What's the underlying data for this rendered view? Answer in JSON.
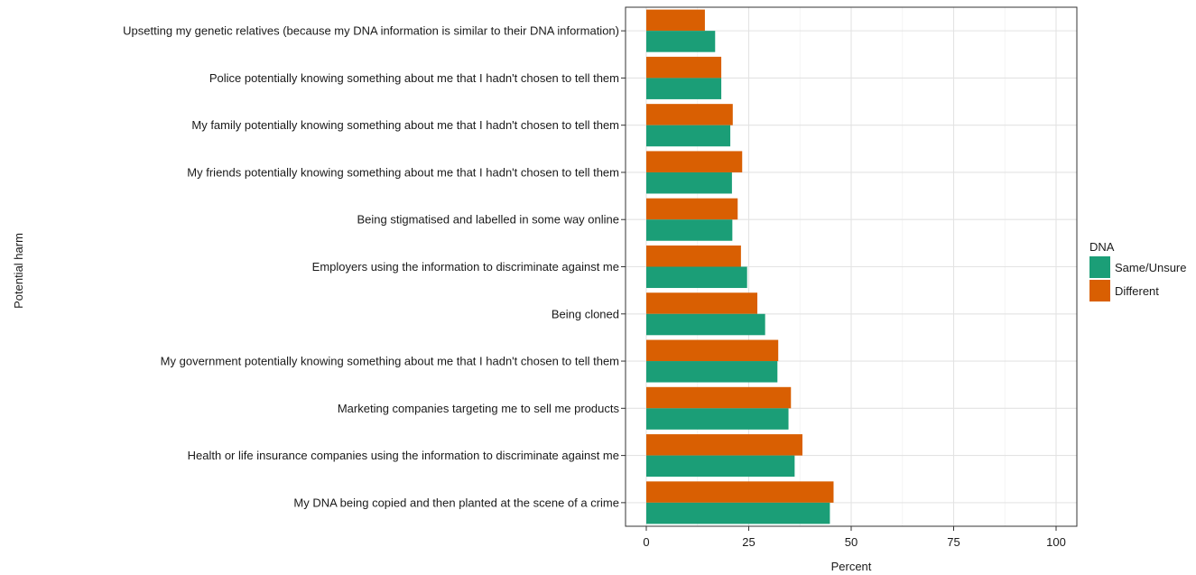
{
  "chart_data": {
    "type": "bar",
    "orientation": "horizontal",
    "categories": [
      "Upsetting my genetic relatives (because my DNA information is similar to their DNA information)",
      "Police potentially knowing something about me that I hadn't chosen to tell them",
      "My family potentially knowing something about me that I hadn't chosen to tell them",
      "My friends potentially knowing something about me that I hadn't chosen to tell them",
      "Being stigmatised and labelled in some way online",
      "Employers using the information to discriminate against me",
      "Being cloned",
      "My government potentially knowing something about me that I hadn't chosen to tell them",
      "Marketing companies targeting me to sell me products",
      "Health or life insurance companies using the information to discriminate against me",
      "My DNA being copied and then planted at the scene of a crime"
    ],
    "series": [
      {
        "name": "Same/Unsure",
        "color": "#1b9e77",
        "values": [
          16.8,
          18.3,
          20.5,
          20.9,
          21.0,
          24.6,
          29.0,
          32.0,
          34.7,
          36.2,
          44.8
        ]
      },
      {
        "name": "Different",
        "color": "#d95f02",
        "values": [
          14.3,
          18.3,
          21.1,
          23.4,
          22.3,
          23.1,
          27.1,
          32.2,
          35.3,
          38.1,
          45.7
        ]
      }
    ],
    "xlabel": "Percent",
    "ylabel": "Potential harm",
    "xlim": [
      0,
      100
    ],
    "xticks": [
      "0",
      "25",
      "50",
      "75",
      "100"
    ],
    "xtick_values": [
      0,
      25,
      50,
      75,
      100
    ],
    "grid": true,
    "legend": {
      "title": "DNA",
      "position": "right"
    }
  }
}
